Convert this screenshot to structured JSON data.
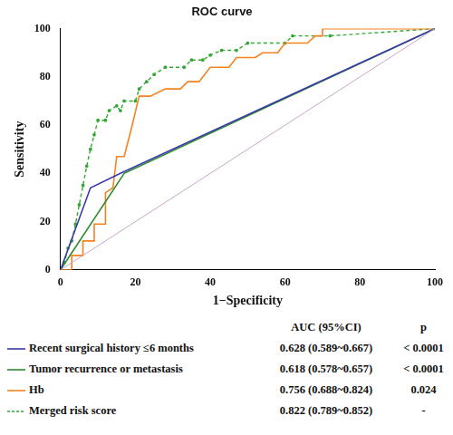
{
  "chart_data": {
    "type": "line",
    "title": "ROC curve",
    "x_label": "1−Specificity",
    "y_label": "Sensitivity",
    "xlim": [
      0,
      100
    ],
    "ylim": [
      0,
      100
    ],
    "xticks": [
      0,
      20,
      40,
      60,
      80,
      100
    ],
    "yticks": [
      0,
      20,
      40,
      60,
      80,
      100
    ],
    "grid": false,
    "table_headers": [
      "AUC (95%CI)",
      "p"
    ],
    "reference_line": {
      "color": "#c9a6c9",
      "x": [
        0,
        100
      ],
      "values": [
        0,
        100
      ]
    },
    "series": [
      {
        "name": "Recent surgical history ≤6 months",
        "color": "#3a3aa8",
        "line_style": "solid",
        "auc": "0.628 (0.589~0.667)",
        "p": "< 0.0001",
        "x": [
          0,
          8,
          16,
          100
        ],
        "values": [
          0,
          34,
          40,
          100
        ]
      },
      {
        "name": "Tumor recurrence or metastasis",
        "color": "#2e8b2e",
        "line_style": "solid",
        "auc": "0.618 (0.578~0.657)",
        "p": "< 0.0001",
        "x": [
          0,
          17,
          100
        ],
        "values": [
          0,
          40,
          100
        ]
      },
      {
        "name": "Hb",
        "color": "#f5821f",
        "line_style": "solid",
        "auc": "0.756 (0.688~0.824)",
        "p": "0.024",
        "x": [
          0,
          3,
          3,
          6,
          6,
          9,
          9,
          12,
          12,
          14,
          15,
          17,
          19,
          21,
          24,
          28,
          32,
          34,
          37,
          40,
          45,
          47,
          52,
          54,
          58,
          60,
          66,
          68,
          70,
          70,
          100
        ],
        "values": [
          0,
          0,
          6,
          6,
          12,
          12,
          19,
          19,
          32,
          34,
          47,
          47,
          59,
          72,
          72,
          75,
          75,
          78,
          78,
          84,
          84,
          88,
          88,
          90,
          90,
          94,
          94,
          97,
          97,
          100,
          100
        ]
      },
      {
        "name": "Merged risk score",
        "color": "#33a833",
        "line_style": "dashed",
        "auc": "0.822 (0.789~0.852)",
        "p": "-",
        "x": [
          0,
          1,
          2,
          3,
          4,
          5,
          6,
          7,
          8,
          9,
          10,
          12,
          13,
          15,
          16,
          17,
          20,
          21,
          23,
          25,
          28,
          33,
          35,
          38,
          40,
          43,
          47,
          50,
          60,
          62,
          72,
          100
        ],
        "values": [
          0,
          3,
          9,
          12,
          19,
          27,
          35,
          43,
          50,
          56,
          62,
          62,
          66,
          68,
          66,
          70,
          70,
          75,
          78,
          81,
          84,
          84,
          87,
          87,
          89,
          91,
          91,
          94,
          94,
          97,
          97,
          100
        ]
      }
    ]
  }
}
